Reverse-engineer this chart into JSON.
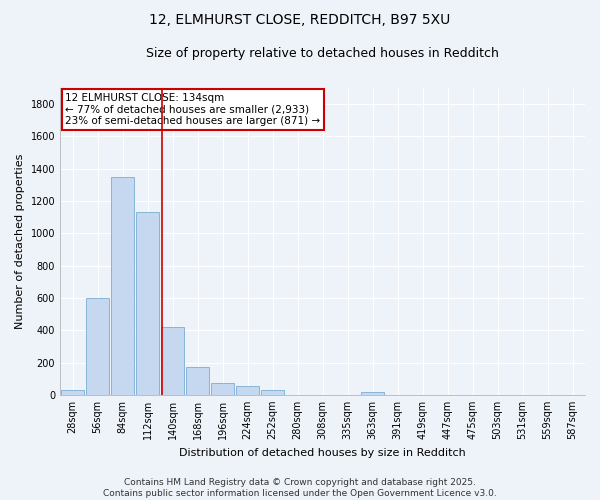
{
  "title_line1": "12, ELMHURST CLOSE, REDDITCH, B97 5XU",
  "title_line2": "Size of property relative to detached houses in Redditch",
  "xlabel": "Distribution of detached houses by size in Redditch",
  "ylabel": "Number of detached properties",
  "categories": [
    "28sqm",
    "56sqm",
    "84sqm",
    "112sqm",
    "140sqm",
    "168sqm",
    "196sqm",
    "224sqm",
    "252sqm",
    "280sqm",
    "308sqm",
    "335sqm",
    "363sqm",
    "391sqm",
    "419sqm",
    "447sqm",
    "475sqm",
    "503sqm",
    "531sqm",
    "559sqm",
    "587sqm"
  ],
  "values": [
    30,
    600,
    1350,
    1130,
    420,
    170,
    75,
    55,
    30,
    0,
    0,
    0,
    20,
    0,
    0,
    0,
    0,
    0,
    0,
    0,
    0
  ],
  "bar_color": "#c5d8f0",
  "bar_edge_color": "#7aadd4",
  "vline_color": "#cc0000",
  "vline_pos": 3.57,
  "ylim": [
    0,
    1900
  ],
  "yticks": [
    0,
    200,
    400,
    600,
    800,
    1000,
    1200,
    1400,
    1600,
    1800
  ],
  "annotation_text": "12 ELMHURST CLOSE: 134sqm\n← 77% of detached houses are smaller (2,933)\n23% of semi-detached houses are larger (871) →",
  "annotation_box_facecolor": "white",
  "annotation_box_edgecolor": "#cc0000",
  "footer_text": "Contains HM Land Registry data © Crown copyright and database right 2025.\nContains public sector information licensed under the Open Government Licence v3.0.",
  "background_color": "#eef2f9",
  "plot_bg_color": "#eef2f9",
  "grid_color": "white",
  "title_fontsize": 10,
  "subtitle_fontsize": 9,
  "axis_label_fontsize": 8,
  "tick_fontsize": 7,
  "annotation_fontsize": 7.5,
  "footer_fontsize": 6.5,
  "ylabel_fontsize": 8
}
